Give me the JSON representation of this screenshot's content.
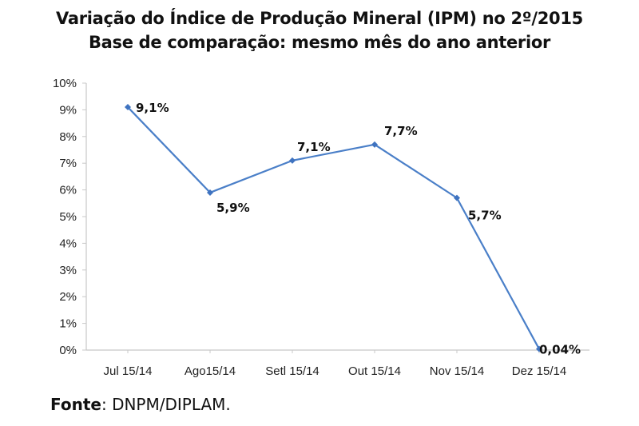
{
  "chart_data": {
    "type": "line",
    "title": "Variação do Índice de Produção Mineral (IPM) no 2º/2015",
    "subtitle": "Base de comparação: mesmo mês do ano anterior",
    "categories": [
      "Jul 15/14",
      "Ago15/14",
      "Setl 15/14",
      "Out 15/14",
      "Nov 15/14",
      "Dez 15/14"
    ],
    "series": [
      {
        "values": [
          9.1,
          5.9,
          7.1,
          7.7,
          5.7,
          0.04
        ],
        "labels": [
          "9,1%",
          "5,9%",
          "7,1%",
          "7,7%",
          "5,7%",
          "0,04%"
        ]
      }
    ],
    "yticks": [
      "0%",
      "1%",
      "2%",
      "3%",
      "4%",
      "5%",
      "6%",
      "7%",
      "8%",
      "9%",
      "10%"
    ],
    "ylim": [
      0,
      10
    ],
    "grid": false,
    "line_color": "#4a7fc8",
    "marker_color": "#3f73c0"
  },
  "source": {
    "label": "Fonte",
    "text": ": DNPM/DIPLAM."
  }
}
